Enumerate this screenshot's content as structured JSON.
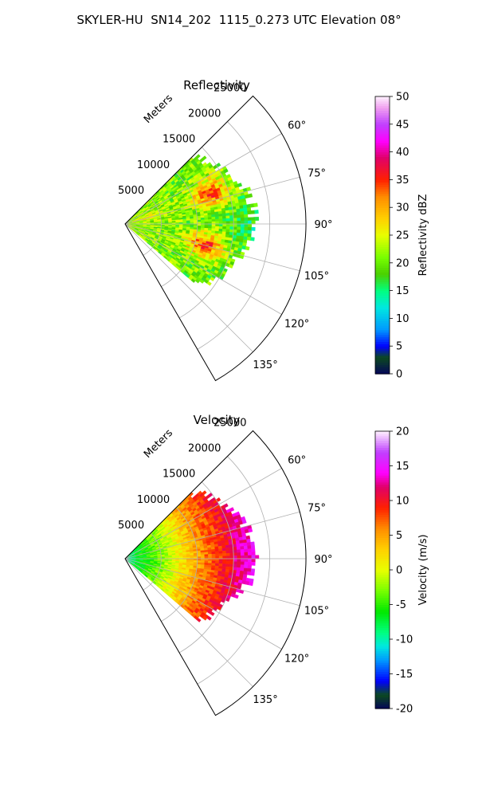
{
  "suptitle": "SKYLER-HU  SN14_202  1115_0.273 UTC Elevation 08°",
  "chart_data": [
    {
      "type": "heatmap",
      "projection": "polar-sector",
      "title": "Reflectivity",
      "range_label": "Meters",
      "range_ticks": [
        5000,
        10000,
        15000,
        20000,
        25000
      ],
      "range_max": 25000,
      "azimuth_range_deg": [
        45,
        150
      ],
      "azimuth_ticks": [
        60,
        75,
        90,
        105,
        120,
        135
      ],
      "data_azimuth_range_deg": [
        45,
        130
      ],
      "data_range_max_approx": 17500,
      "grid": true,
      "colorbar": {
        "label": "Reflectivity dBZ",
        "vmin": 0,
        "vmax": 50,
        "ticks": [
          0,
          5,
          10,
          15,
          20,
          25,
          30,
          35,
          40,
          45,
          50
        ],
        "colormap": "nws-reflectivity"
      },
      "features": [
        {
          "desc": "core",
          "azimuth_deg": 70,
          "range_m": 12500,
          "value_dbz": 36
        },
        {
          "desc": "core",
          "azimuth_deg": 105,
          "range_m": 11500,
          "value_dbz": 36
        },
        {
          "desc": "near-radar",
          "azimuth_deg": 75,
          "range_m": 3000,
          "value_dbz": 27
        },
        {
          "desc": "outer edge",
          "azimuth_deg": 90,
          "range_m": 17000,
          "value_dbz": 19
        }
      ]
    },
    {
      "type": "heatmap",
      "projection": "polar-sector",
      "title": "Velocity",
      "range_label": "Meters",
      "range_ticks": [
        5000,
        10000,
        15000,
        20000,
        25000
      ],
      "range_max": 25000,
      "azimuth_range_deg": [
        45,
        150
      ],
      "azimuth_ticks": [
        60,
        75,
        90,
        105,
        120,
        135
      ],
      "data_azimuth_range_deg": [
        45,
        130
      ],
      "data_range_max_approx": 17500,
      "grid": true,
      "colorbar": {
        "label": "Velocity (m/s)",
        "vmin": -20,
        "vmax": 20,
        "ticks": [
          -20,
          -15,
          -10,
          -5,
          0,
          5,
          10,
          15,
          20
        ],
        "colormap": "nws-velocity"
      },
      "radial_profile": [
        {
          "range_m": 0,
          "value_ms": -10
        },
        {
          "range_m": 2500,
          "value_ms": -6
        },
        {
          "range_m": 5000,
          "value_ms": -3
        },
        {
          "range_m": 7500,
          "value_ms": 1
        },
        {
          "range_m": 10000,
          "value_ms": 5
        },
        {
          "range_m": 12500,
          "value_ms": 8
        },
        {
          "range_m": 15000,
          "value_ms": 11
        },
        {
          "range_m": 17500,
          "value_ms": 14
        }
      ]
    }
  ],
  "colormaps": {
    "nws-reflectivity": [
      {
        "v": 0,
        "c": "#04045a"
      },
      {
        "v": 3,
        "c": "#0c4a1e"
      },
      {
        "v": 5,
        "c": "#0000ff"
      },
      {
        "v": 8,
        "c": "#0099ff"
      },
      {
        "v": 12,
        "c": "#00e8e0"
      },
      {
        "v": 15,
        "c": "#00ff80"
      },
      {
        "v": 18,
        "c": "#4ad000"
      },
      {
        "v": 21,
        "c": "#78ff00"
      },
      {
        "v": 25,
        "c": "#e8ff00"
      },
      {
        "v": 28,
        "c": "#ffd000"
      },
      {
        "v": 32,
        "c": "#ff8c00"
      },
      {
        "v": 35,
        "c": "#ff2000"
      },
      {
        "v": 39,
        "c": "#e0006a"
      },
      {
        "v": 42,
        "c": "#ff00ff"
      },
      {
        "v": 45,
        "c": "#c040ff"
      },
      {
        "v": 48,
        "c": "#f0a0f0"
      },
      {
        "v": 50,
        "c": "#fff0ff"
      }
    ],
    "nws-velocity": [
      {
        "v": -20,
        "c": "#04045a"
      },
      {
        "v": -18,
        "c": "#0c4a1e"
      },
      {
        "v": -16,
        "c": "#0000ff"
      },
      {
        "v": -13,
        "c": "#0099ff"
      },
      {
        "v": -11,
        "c": "#00e8e0"
      },
      {
        "v": -9,
        "c": "#00ff80"
      },
      {
        "v": -6,
        "c": "#00e800"
      },
      {
        "v": -3,
        "c": "#78ff00"
      },
      {
        "v": 0,
        "c": "#e8ff00"
      },
      {
        "v": 3,
        "c": "#ffd000"
      },
      {
        "v": 6,
        "c": "#ff8c00"
      },
      {
        "v": 9,
        "c": "#ff2000"
      },
      {
        "v": 12,
        "c": "#e0006a"
      },
      {
        "v": 14,
        "c": "#ff00ff"
      },
      {
        "v": 17,
        "c": "#c040ff"
      },
      {
        "v": 20,
        "c": "#fff0ff"
      }
    ]
  }
}
